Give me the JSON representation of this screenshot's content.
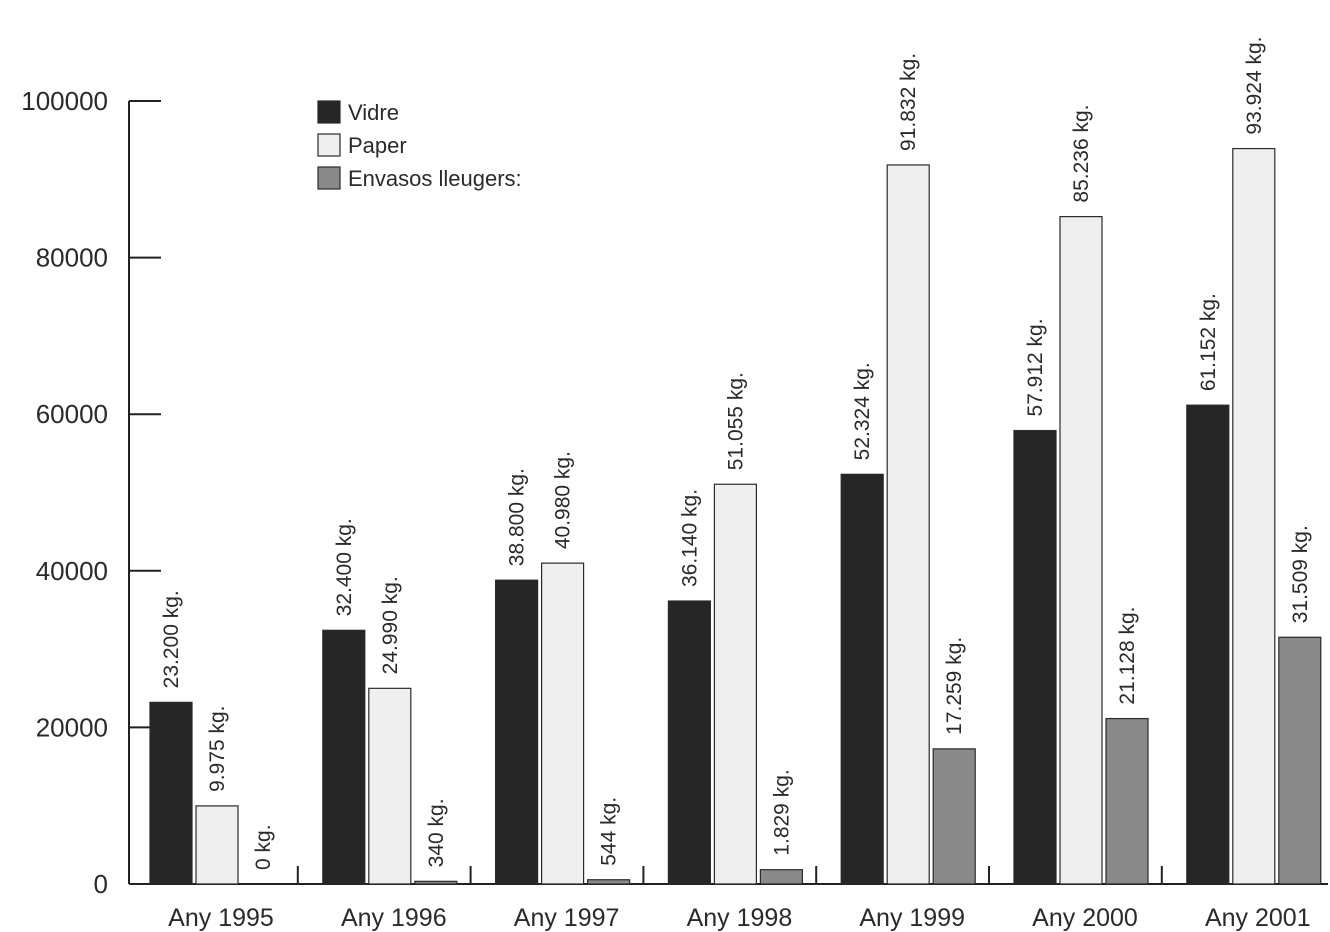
{
  "chart_data": {
    "type": "bar",
    "title": "",
    "xlabel": "",
    "ylabel": "",
    "ylim": [
      0,
      100000
    ],
    "yticks": [
      0,
      20000,
      40000,
      60000,
      80000,
      100000
    ],
    "ytick_labels": [
      "0",
      "20000",
      "40000",
      "60000",
      "80000",
      "100000"
    ],
    "categories": [
      "Any 1995",
      "Any 1996",
      "Any 1997",
      "Any 1998",
      "Any 1999",
      "Any 2000",
      "Any 2001"
    ],
    "legend_position": "top-left",
    "grid": false,
    "series": [
      {
        "name": "Vidre",
        "color": "#262626",
        "values": [
          23200,
          32400,
          38800,
          36140,
          52324,
          57912,
          61152
        ],
        "labels": [
          "23.200 kg.",
          "32.400 kg.",
          "38.800 kg.",
          "36.140 kg.",
          "52.324 kg.",
          "57.912 kg.",
          "61.152 kg."
        ]
      },
      {
        "name": "Paper",
        "color": "#efefef",
        "values": [
          9975,
          24990,
          40980,
          51055,
          91832,
          85236,
          93924
        ],
        "labels": [
          "9.975 kg.",
          "24.990 kg.",
          "40.980 kg.",
          "51.055 kg.",
          "91.832 kg.",
          "85.236 kg.",
          "93.924 kg."
        ]
      },
      {
        "name": "Envasos lleugers:",
        "color": "#8a8a8a",
        "values": [
          0,
          340,
          544,
          1829,
          17259,
          21128,
          31509
        ],
        "labels": [
          "0 kg.",
          "340 kg.",
          "544 kg.",
          "1.829 kg.",
          "17.259 kg.",
          "21.128 kg.",
          "31.509 kg."
        ]
      }
    ]
  }
}
